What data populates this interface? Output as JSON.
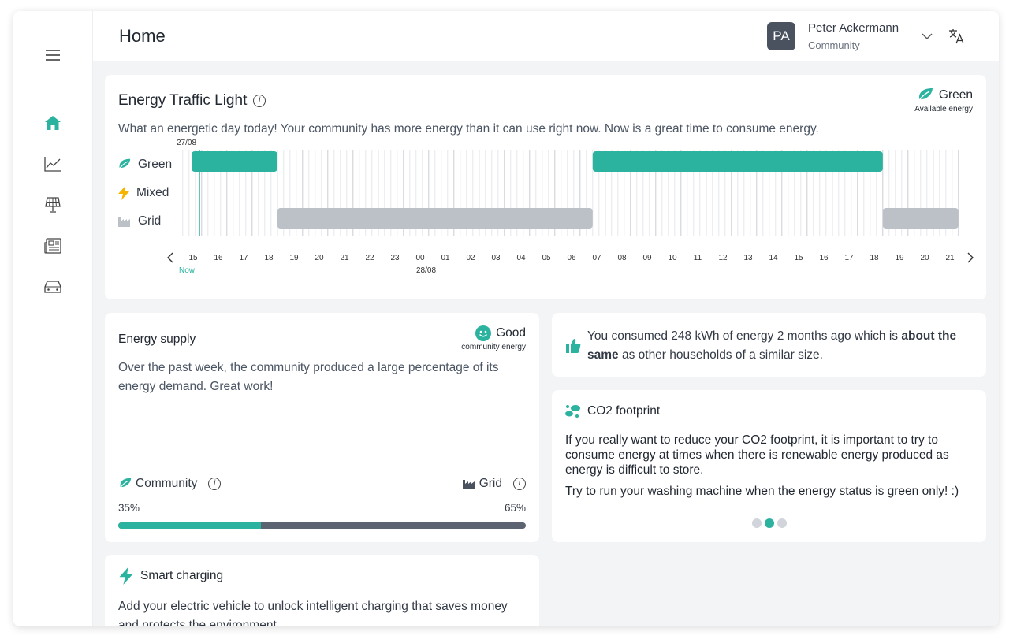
{
  "header": {
    "title": "Home",
    "user": {
      "initials": "PA",
      "name": "Peter Ackermann",
      "role": "Community"
    }
  },
  "sidebar": {
    "items": [
      {
        "icon": "menu-icon"
      },
      {
        "icon": "home-icon",
        "active": true
      },
      {
        "icon": "chart-icon"
      },
      {
        "icon": "solar-panel-icon"
      },
      {
        "icon": "news-icon"
      },
      {
        "icon": "car-icon"
      }
    ]
  },
  "traffic_light": {
    "title": "Energy Traffic Light",
    "status": {
      "label": "Green",
      "sub": "Available energy"
    },
    "description": "What an energetic day today! Your community has more energy than it can use right now. Now is a great time to consume energy.",
    "rows": [
      "Green",
      "Mixed",
      "Grid"
    ],
    "date_start": "27/08",
    "date_next": "28/08",
    "now_label": "Now",
    "hours": [
      "15",
      "16",
      "17",
      "18",
      "19",
      "20",
      "21",
      "22",
      "23",
      "00",
      "01",
      "02",
      "03",
      "04",
      "05",
      "06",
      "07",
      "08",
      "09",
      "10",
      "11",
      "12",
      "13",
      "14",
      "15",
      "16",
      "17",
      "18",
      "19",
      "20",
      "21"
    ],
    "segments": [
      {
        "row": "Green",
        "start": 14.6,
        "end": 18.0
      },
      {
        "row": "Grid",
        "start": 18.0,
        "end": 30.5
      },
      {
        "row": "Green",
        "start": 30.5,
        "end": 42.0
      },
      {
        "row": "Grid",
        "start": 42.0,
        "end": 45.0
      }
    ],
    "now_hour": 14.6,
    "colors": {
      "green": "#2bb3a0",
      "grid": "#bcc1c8",
      "mixed": "#f5b400"
    }
  },
  "energy_supply": {
    "title": "Energy supply",
    "status": {
      "label": "Good",
      "sub": "community energy"
    },
    "description": "Over the past week, the community produced a large percentage of its energy demand. Great work!",
    "community_label": "Community",
    "grid_label": "Grid",
    "community_pct": "35%",
    "grid_pct": "65%",
    "community_value": 35
  },
  "consumption": {
    "text_pre": "You consumed 248 kWh of energy 2 months ago which is ",
    "text_bold": "about the same",
    "text_post": " as other households of a similar size."
  },
  "co2": {
    "title": "CO2 footprint",
    "para1": "If you really want to reduce your CO2 footprint, it is important to try to consume energy at times when there is renewable energy produced as energy is difficult to store.",
    "para2": "Try to run your washing machine when the energy status is green only! :)",
    "dots": 3,
    "active_dot": 1
  },
  "smart_charging": {
    "title": "Smart charging",
    "description": "Add your electric vehicle to unlock intelligent charging that saves money and protects the environment."
  }
}
